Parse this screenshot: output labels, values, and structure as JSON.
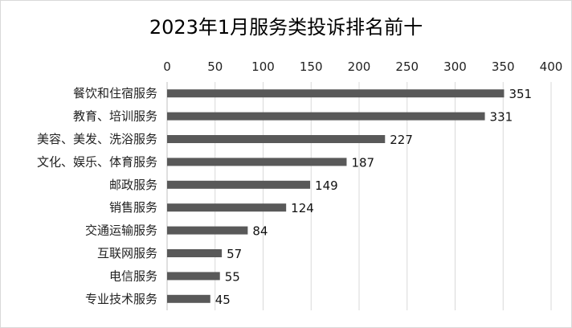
{
  "chart_data": {
    "type": "bar",
    "orientation": "horizontal",
    "title": "2023年1月服务类投诉排名前十",
    "categories": [
      "餐饮和住宿服务",
      "教育、培训服务",
      "美容、美发、洗浴服务",
      "文化、娱乐、体育服务",
      "邮政服务",
      "销售服务",
      "交通运输服务",
      "互联网服务",
      "电信服务",
      "专业技术服务"
    ],
    "values": [
      351,
      331,
      227,
      187,
      149,
      124,
      84,
      57,
      55,
      45
    ],
    "xlim": [
      0,
      400
    ],
    "ticks": [
      0,
      50,
      100,
      150,
      200,
      250,
      300,
      350,
      400
    ],
    "axis_position": "top",
    "grid": true,
    "legend": "none",
    "data_labels": true,
    "colors": {
      "bar": "#595959",
      "grid": "#d9d9d9",
      "axis": "#bfbfbf"
    }
  }
}
